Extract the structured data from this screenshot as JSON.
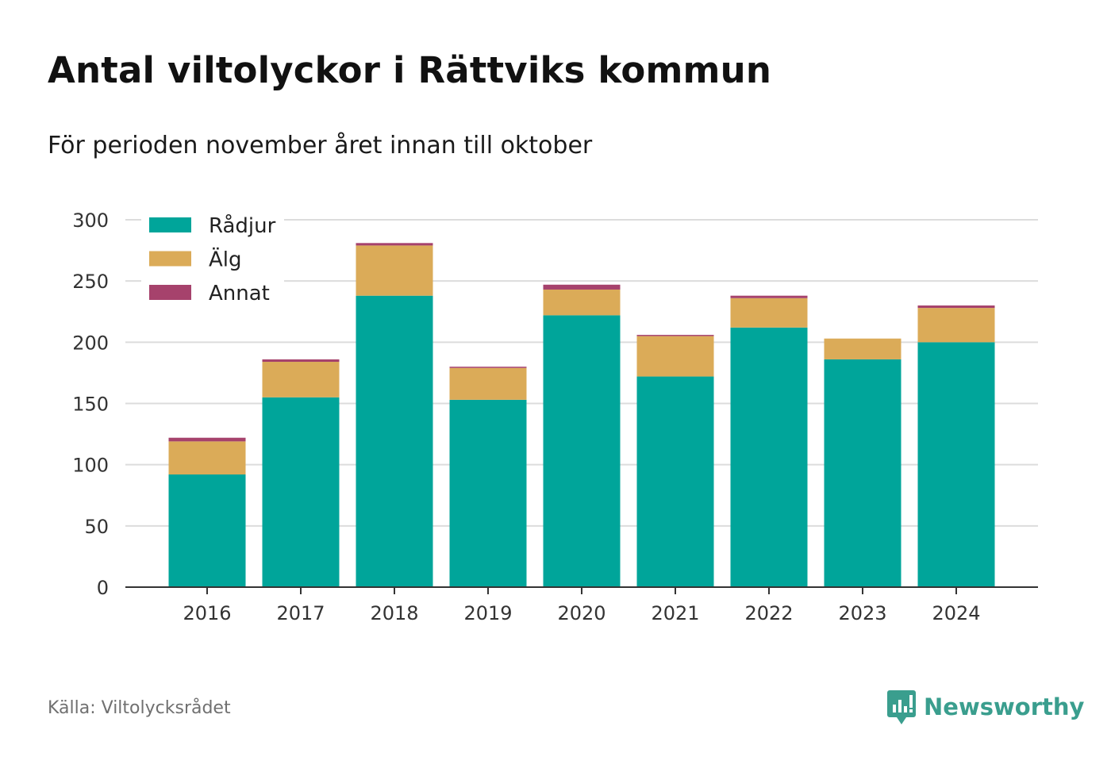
{
  "title": "Antal viltolyckor i Rättviks kommun",
  "subtitle": "För perioden november året innan till oktober",
  "source": "Källa: Viltolycksrådet",
  "brand": {
    "name": "Newsworthy",
    "icon": "newsworthy-logo-icon",
    "color": "#3a9e8e"
  },
  "chart_data": {
    "type": "bar",
    "stacked": true,
    "categories": [
      "2016",
      "2017",
      "2018",
      "2019",
      "2020",
      "2021",
      "2022",
      "2023",
      "2024"
    ],
    "series": [
      {
        "name": "Rådjur",
        "color": "#00a59a",
        "values": [
          92,
          155,
          238,
          153,
          222,
          172,
          212,
          186,
          200
        ]
      },
      {
        "name": "Älg",
        "color": "#dbab58",
        "values": [
          27,
          29,
          41,
          26,
          21,
          33,
          24,
          17,
          28
        ]
      },
      {
        "name": "Annat",
        "color": "#a6426c",
        "values": [
          3,
          2,
          2,
          1,
          4,
          1,
          2,
          0,
          2
        ]
      }
    ],
    "yticks": [
      "0",
      "50",
      "100",
      "150",
      "200",
      "250",
      "300"
    ],
    "ylim": [
      0,
      300
    ],
    "grid": true,
    "legend_position": "top-left"
  }
}
